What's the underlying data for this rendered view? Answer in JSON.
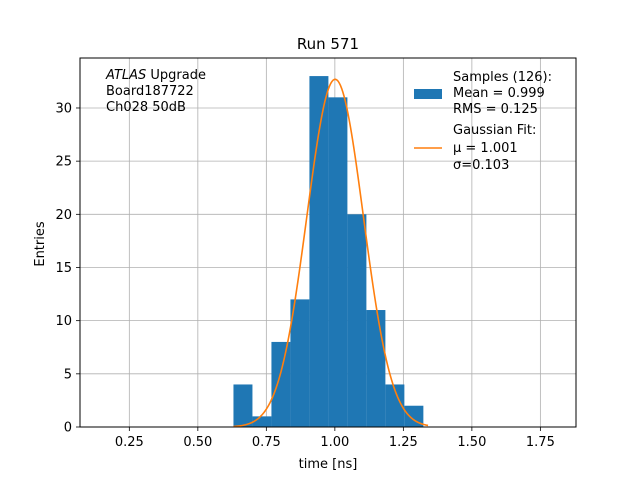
{
  "chart_data": {
    "type": "bar",
    "title": "Run 571",
    "xlabel": "time [ns]",
    "ylabel": "Entries",
    "xlim": [
      0.07,
      1.88
    ],
    "ylim": [
      0,
      34.7
    ],
    "xticks": [
      0.25,
      0.5,
      0.75,
      1.0,
      1.25,
      1.5,
      1.75
    ],
    "xtick_labels": [
      "0.25",
      "0.50",
      "0.75",
      "1.00",
      "1.25",
      "1.50",
      "1.75"
    ],
    "yticks": [
      0,
      5,
      10,
      15,
      20,
      25,
      30
    ],
    "ytick_labels": [
      "0",
      "5",
      "10",
      "15",
      "20",
      "25",
      "30"
    ],
    "grid": true,
    "bin_edges": [
      0.63,
      0.6993,
      0.7686,
      0.8379,
      0.9072,
      0.9765,
      1.0458,
      1.1151,
      1.1844,
      1.2537,
      1.323
    ],
    "counts": [
      4,
      1,
      8,
      12,
      33,
      31,
      20,
      11,
      4,
      2
    ],
    "bar_color": "#1f77b4",
    "fit": {
      "mu": 1.001,
      "sigma": 0.103,
      "amplitude": 32.7,
      "range": [
        0.63,
        1.34
      ],
      "color": "#ff7f0e"
    },
    "annotation": {
      "lines": [
        {
          "italic": "ATLAS",
          "text": " Upgrade"
        },
        {
          "italic": "",
          "text": " Board187722"
        },
        {
          "italic": "",
          "text": " Ch028 50dB"
        }
      ]
    },
    "legend": {
      "position": "top-right",
      "entries": [
        {
          "label": "Samples (126):",
          "sub": [
            " Mean = 0.999",
            " RMS = 0.125"
          ]
        },
        {
          "label": "Gaussian Fit:",
          "sub": [
            " μ = 1.001",
            " σ=0.103"
          ]
        }
      ]
    }
  }
}
